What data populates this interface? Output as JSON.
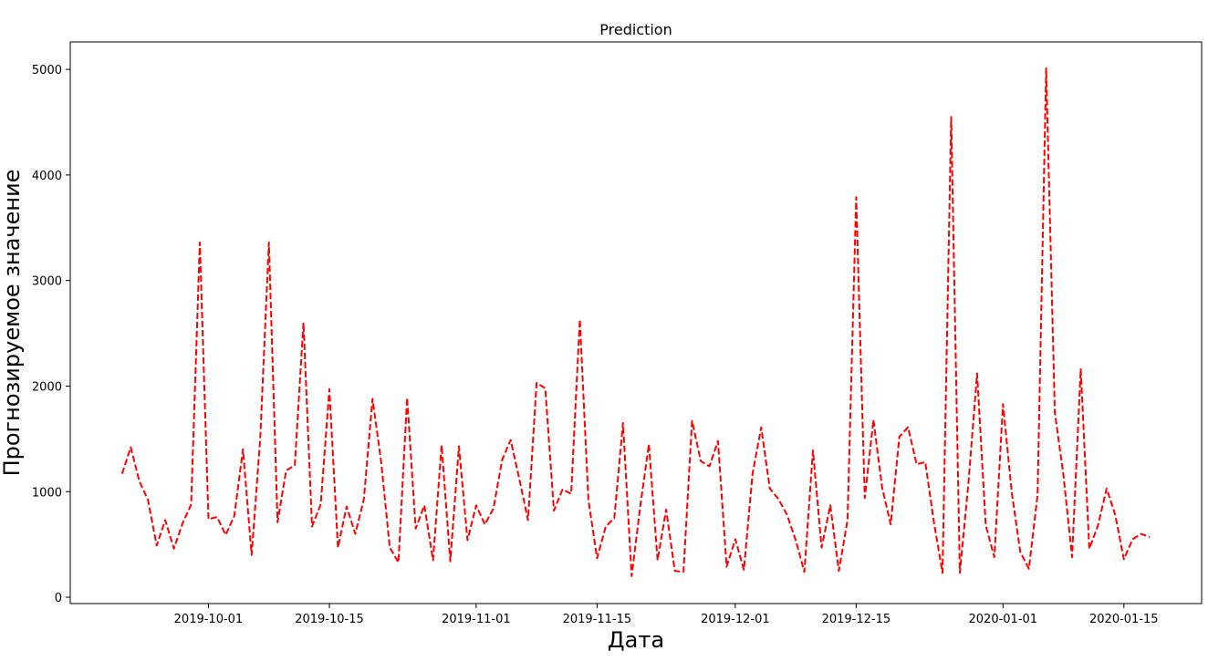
{
  "chart_data": {
    "type": "line",
    "title": "Prediction",
    "xlabel": "Дата",
    "ylabel": "Прогнозируемое значение",
    "x_ticks": [
      "2019-10-01",
      "2019-10-15",
      "2019-11-01",
      "2019-11-15",
      "2019-12-01",
      "2019-12-15",
      "2020-01-01",
      "2020-01-15"
    ],
    "y_ticks": [
      0,
      1000,
      2000,
      3000,
      4000,
      5000
    ],
    "ylim": [
      -60,
      5260
    ],
    "xlim": [
      "2019-09-15",
      "2020-01-24"
    ],
    "grid": false,
    "legend": "none",
    "line_style": "dashed",
    "series": [
      {
        "color": "#ff0000",
        "x": [
          "2019-09-21",
          "2019-09-22",
          "2019-09-23",
          "2019-09-24",
          "2019-09-25",
          "2019-09-26",
          "2019-09-27",
          "2019-09-28",
          "2019-09-29",
          "2019-09-30",
          "2019-10-01",
          "2019-10-02",
          "2019-10-03",
          "2019-10-04",
          "2019-10-05",
          "2019-10-06",
          "2019-10-07",
          "2019-10-08",
          "2019-10-09",
          "2019-10-10",
          "2019-10-11",
          "2019-10-12",
          "2019-10-13",
          "2019-10-14",
          "2019-10-15",
          "2019-10-16",
          "2019-10-17",
          "2019-10-18",
          "2019-10-19",
          "2019-10-20",
          "2019-10-21",
          "2019-10-22",
          "2019-10-23",
          "2019-10-24",
          "2019-10-25",
          "2019-10-26",
          "2019-10-27",
          "2019-10-28",
          "2019-10-29",
          "2019-10-30",
          "2019-10-31",
          "2019-11-01",
          "2019-11-02",
          "2019-11-03",
          "2019-11-04",
          "2019-11-05",
          "2019-11-06",
          "2019-11-07",
          "2019-11-08",
          "2019-11-09",
          "2019-11-10",
          "2019-11-11",
          "2019-11-12",
          "2019-11-13",
          "2019-11-14",
          "2019-11-15",
          "2019-11-16",
          "2019-11-17",
          "2019-11-18",
          "2019-11-19",
          "2019-11-20",
          "2019-11-21",
          "2019-11-22",
          "2019-11-23",
          "2019-11-24",
          "2019-11-25",
          "2019-11-26",
          "2019-11-27",
          "2019-11-28",
          "2019-11-29",
          "2019-11-30",
          "2019-12-01",
          "2019-12-02",
          "2019-12-03",
          "2019-12-04",
          "2019-12-05",
          "2019-12-06",
          "2019-12-07",
          "2019-12-08",
          "2019-12-09",
          "2019-12-10",
          "2019-12-11",
          "2019-12-12",
          "2019-12-13",
          "2019-12-14",
          "2019-12-15",
          "2019-12-16",
          "2019-12-17",
          "2019-12-18",
          "2019-12-19",
          "2019-12-20",
          "2019-12-21",
          "2019-12-22",
          "2019-12-23",
          "2019-12-24",
          "2019-12-25",
          "2019-12-26",
          "2019-12-27",
          "2019-12-28",
          "2019-12-29",
          "2019-12-30",
          "2019-12-31",
          "2020-01-01",
          "2020-01-02",
          "2020-01-03",
          "2020-01-04",
          "2020-01-05",
          "2020-01-06",
          "2020-01-07",
          "2020-01-08",
          "2020-01-09",
          "2020-01-10",
          "2020-01-11",
          "2020-01-12",
          "2020-01-13",
          "2020-01-14",
          "2020-01-15",
          "2020-01-16",
          "2020-01-17",
          "2020-01-18"
        ],
        "values": [
          1170,
          1420,
          1100,
          920,
          490,
          730,
          460,
          700,
          880,
          3360,
          740,
          760,
          590,
          770,
          1400,
          400,
          1500,
          3360,
          710,
          1200,
          1250,
          2600,
          670,
          880,
          1970,
          470,
          860,
          600,
          930,
          1880,
          1280,
          470,
          330,
          1890,
          650,
          870,
          350,
          1440,
          340,
          1430,
          540,
          870,
          690,
          840,
          1300,
          1490,
          1120,
          730,
          2030,
          1980,
          820,
          1020,
          980,
          2630,
          920,
          370,
          670,
          750,
          1650,
          200,
          860,
          1450,
          350,
          830,
          250,
          240,
          1670,
          1290,
          1240,
          1480,
          290,
          550,
          260,
          1170,
          1610,
          1030,
          930,
          780,
          540,
          240,
          1390,
          470,
          870,
          250,
          730,
          3790,
          940,
          1680,
          1040,
          690,
          1520,
          1610,
          1260,
          1280,
          710,
          230,
          4550,
          230,
          1080,
          2120,
          680,
          380,
          1830,
          1000,
          430,
          270,
          970,
          5010,
          1750,
          1160,
          380,
          2160,
          460,
          680,
          1030,
          780,
          360,
          550,
          600,
          570
        ]
      }
    ]
  }
}
